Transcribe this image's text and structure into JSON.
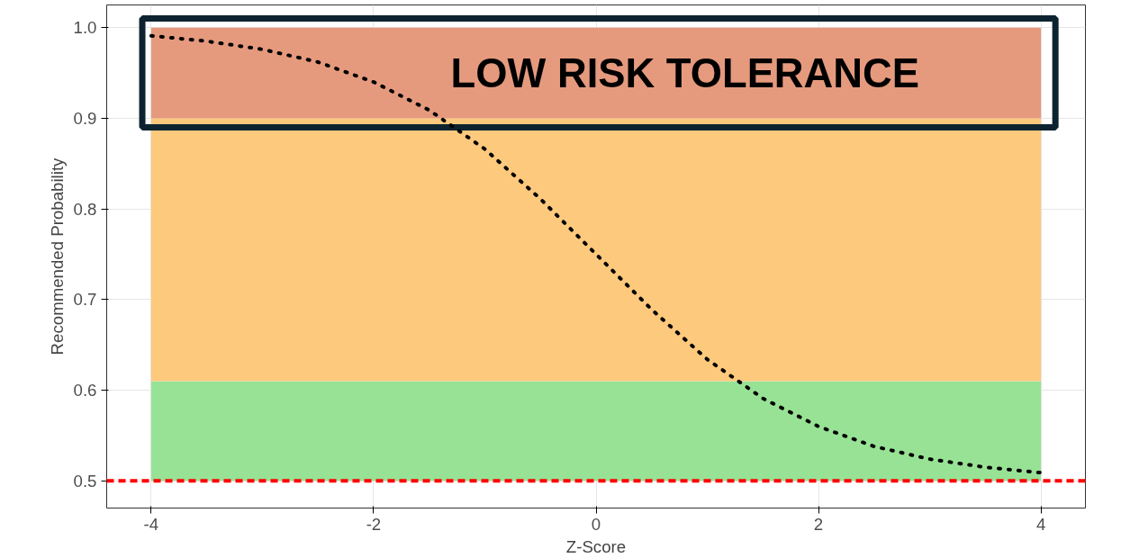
{
  "chart_data": {
    "type": "line",
    "xlabel": "Z-Score",
    "ylabel": "Recommended Probability",
    "x": [
      -4,
      -3.5,
      -3,
      -2.5,
      -2,
      -1.5,
      -1,
      -0.5,
      0,
      0.5,
      1,
      1.5,
      2,
      2.5,
      3,
      3.5,
      4
    ],
    "series": [
      {
        "color": "#000000",
        "values": [
          0.991,
          0.985,
          0.976,
          0.962,
          0.94,
          0.909,
          0.866,
          0.811,
          0.75,
          0.689,
          0.634,
          0.591,
          0.56,
          0.538,
          0.524,
          0.515,
          0.509
        ]
      }
    ],
    "line_style": "dotted",
    "marker": "none",
    "xlim": [
      -4.4,
      4.4
    ],
    "ylim": [
      0.47,
      1.025
    ],
    "xticks": [
      -4,
      -2,
      0,
      2,
      4
    ],
    "yticks": [
      {
        "value": 0.5,
        "label": "0.5"
      },
      0.6,
      0.7,
      0.8,
      0.9,
      {
        "value": 1.0,
        "label": "1.0"
      }
    ],
    "grid": true,
    "bands": [
      {
        "axis": "y",
        "from": 0.5,
        "to": 0.61,
        "color": "#98e296"
      },
      {
        "axis": "y",
        "from": 0.61,
        "to": 0.9,
        "color": "#fdc97d"
      },
      {
        "axis": "y",
        "from": 0.9,
        "to": 1.0,
        "color": "#e59a7e",
        "label": "LOW RISK TOLERANCE"
      }
    ],
    "ref_lines": [
      {
        "axis": "y",
        "value": 0.5,
        "color": "#ff0000",
        "line_style": "dashed"
      }
    ]
  }
}
